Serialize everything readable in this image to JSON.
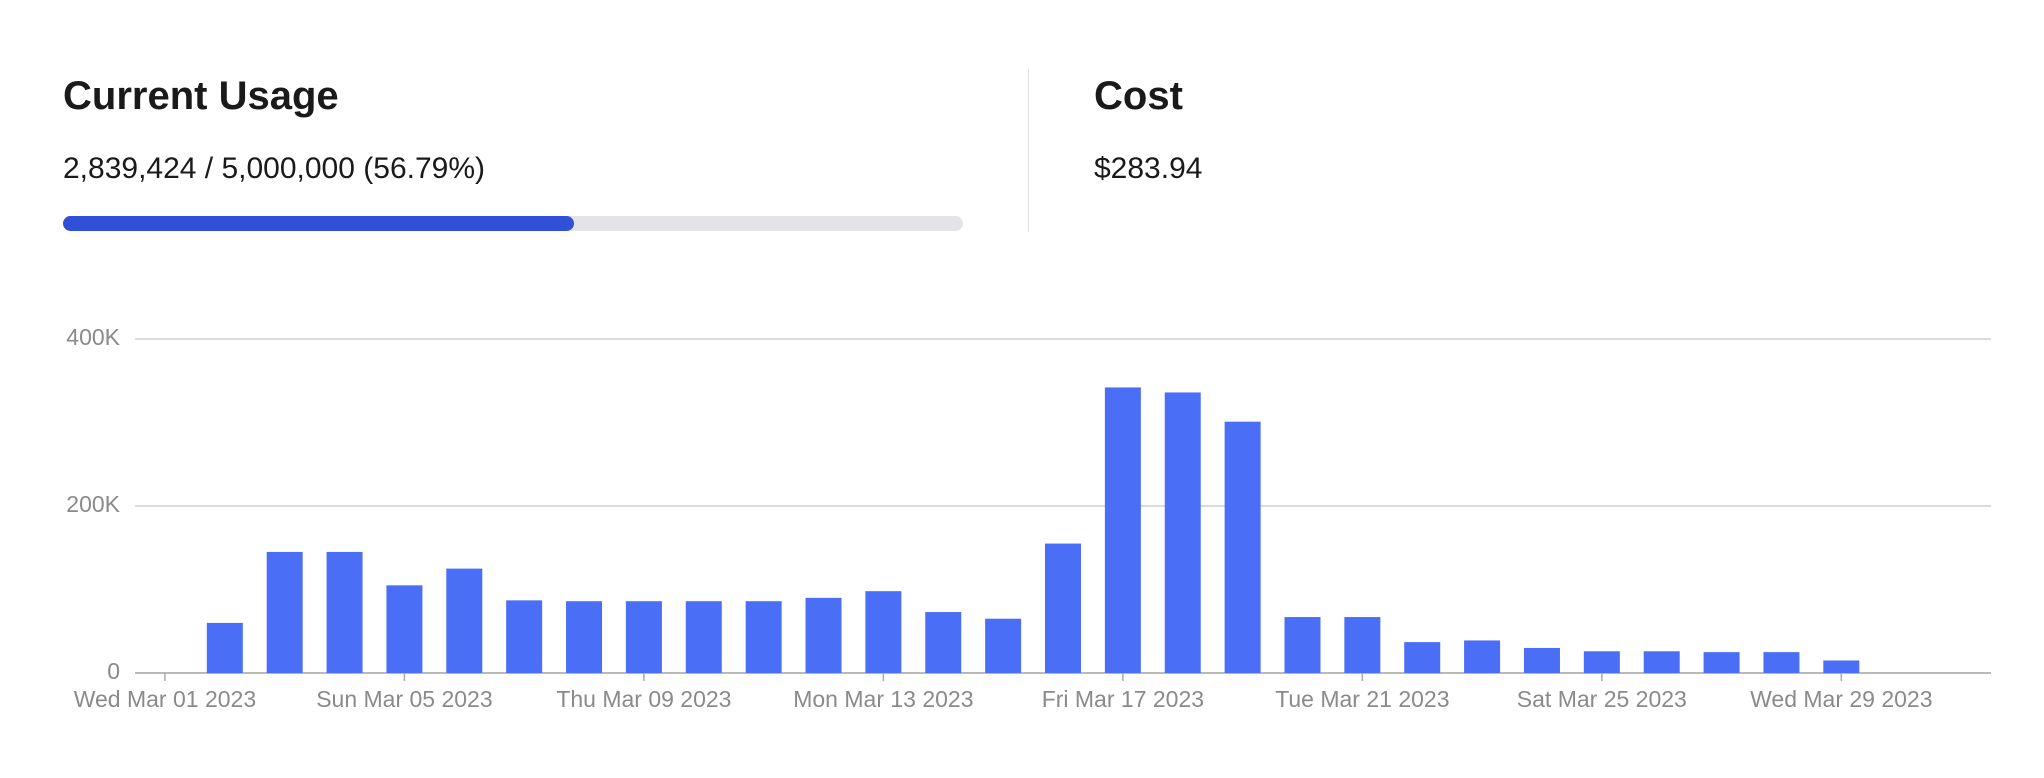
{
  "usage": {
    "title": "Current Usage",
    "label": "2,839,424 / 5,000,000 (56.79%)",
    "used": 2839424,
    "limit": 5000000
  },
  "cost": {
    "title": "Cost",
    "label": "$283.94"
  },
  "chart_data": {
    "type": "bar",
    "categories": [
      "Wed Mar 01 2023",
      null,
      null,
      null,
      "Sun Mar 05 2023",
      null,
      null,
      null,
      "Thu Mar 09 2023",
      null,
      null,
      null,
      "Mon Mar 13 2023",
      null,
      null,
      null,
      "Fri Mar 17 2023",
      null,
      null,
      null,
      "Tue Mar 21 2023",
      null,
      null,
      null,
      "Sat Mar 25 2023",
      null,
      null,
      null,
      "Wed Mar 29 2023",
      null,
      null
    ],
    "values": [
      0,
      60000,
      145000,
      145000,
      105000,
      125000,
      87000,
      86000,
      86000,
      86000,
      86000,
      90000,
      98000,
      73000,
      65000,
      155000,
      342000,
      336000,
      301000,
      67000,
      67000,
      37000,
      39000,
      30000,
      26000,
      26000,
      25000,
      25000,
      15000,
      0,
      0
    ],
    "color": "#4a6ff6",
    "ylim": [
      0,
      400000
    ],
    "yticks": [
      0,
      {
        "value": 200000,
        "label": "200K"
      },
      {
        "value": 400000,
        "label": "400K"
      }
    ],
    "grid": true
  }
}
